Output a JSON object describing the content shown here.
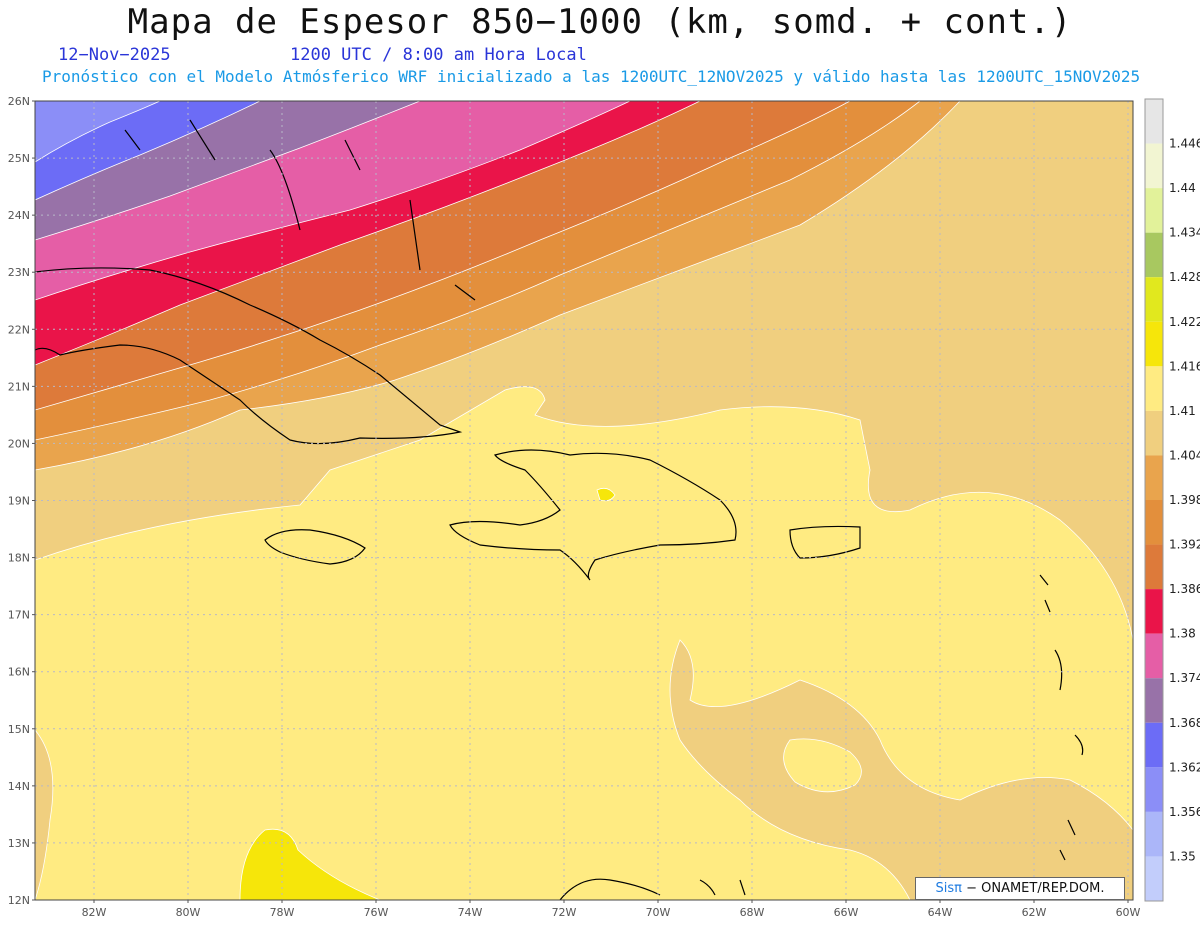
{
  "title": "Mapa de Espesor 850−1000 (km, somd. + cont.)",
  "date_label": "12−Nov−2025",
  "time_label": "1200 UTC / 8:00 am Hora Local",
  "forecast_label": "Pronóstico con el Modelo Atmósferico WRF inicializado a las 1200UTC_12NOV2025 y válido hasta las  1200UTC_15NOV2025",
  "credit": {
    "brand": "Sisπ",
    "org": "− ONAMET/REP.DOM."
  },
  "map": {
    "lat_labels": [
      "26N",
      "25N",
      "24N",
      "23N",
      "22N",
      "21N",
      "20N",
      "19N",
      "18N",
      "17N",
      "16N",
      "15N",
      "14N",
      "13N",
      "12N"
    ],
    "lon_labels": [
      "82W",
      "80W",
      "78W",
      "76W",
      "74W",
      "72W",
      "70W",
      "68W",
      "66W",
      "64W",
      "62W",
      "60W"
    ],
    "gridlines": true
  },
  "colorbar": {
    "levels": [
      "1.446",
      "1.44",
      "1.434",
      "1.428",
      "1.422",
      "1.416",
      "1.41",
      "1.404",
      "1.398",
      "1.392",
      "1.386",
      "1.38",
      "1.374",
      "1.368",
      "1.362",
      "1.356",
      "1.35"
    ],
    "colors": [
      "#e6e6e6",
      "#f2f5d2",
      "#e2f29a",
      "#a8c860",
      "#e1e81e",
      "#f6e60a",
      "#ffeb82",
      "#f0cf7f",
      "#e9a44d",
      "#e38f3c",
      "#dd7a3a",
      "#ea1449",
      "#e55ea6",
      "#9872a8",
      "#6c6cf6",
      "#8b8ef7",
      "#abb6f9",
      "#c2cdfb"
    ]
  }
}
